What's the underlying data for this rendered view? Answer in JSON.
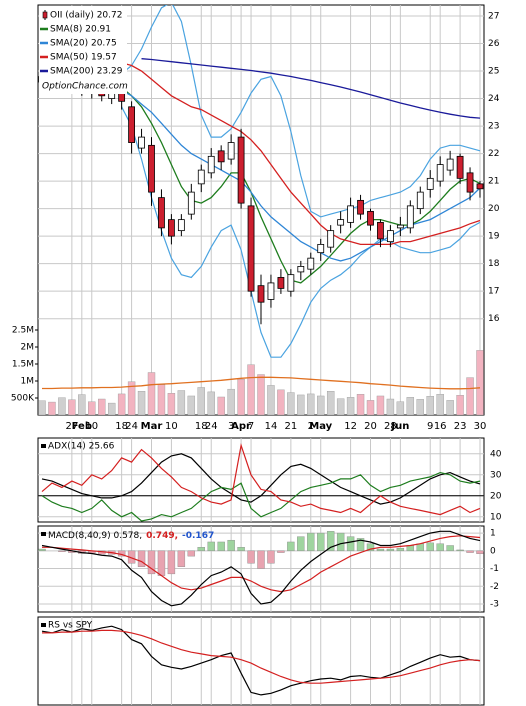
{
  "chart_data": [
    {
      "type": "candlestick",
      "name": "OII (daily) 20.72",
      "watermark": "OptionChance.com",
      "categories": [
        null,
        null,
        null,
        "27",
        "Feb",
        "10",
        null,
        null,
        "18",
        "24",
        null,
        "Mar",
        null,
        "10",
        null,
        null,
        "18",
        "24",
        null,
        "3",
        "Apr",
        "7",
        null,
        "14",
        null,
        "21",
        null,
        "2",
        "May",
        null,
        null,
        "12",
        null,
        "20",
        null,
        "28",
        "Jun",
        null,
        null,
        "9",
        "16",
        null,
        "23",
        null,
        "30"
      ],
      "open": [
        24.6,
        24.8,
        24.5,
        24.7,
        24.3,
        24.5,
        24.3,
        24.0,
        24.2,
        23.7,
        22.2,
        22.3,
        20.4,
        19.6,
        19.2,
        19.8,
        20.9,
        21.3,
        22.1,
        21.8,
        22.6,
        20.1,
        17.2,
        16.7,
        17.5,
        17.0,
        17.7,
        17.8,
        18.4,
        18.6,
        19.4,
        19.5,
        20.3,
        19.9,
        19.5,
        18.8,
        19.3,
        19.3,
        20.0,
        20.7,
        21.0,
        21.4,
        21.9,
        21.3,
        20.9
      ],
      "high": [
        25.1,
        25.0,
        25.0,
        24.9,
        24.7,
        24.7,
        24.5,
        24.5,
        24.4,
        23.9,
        22.9,
        22.6,
        20.7,
        19.8,
        19.8,
        20.9,
        21.6,
        22.2,
        22.3,
        22.7,
        22.9,
        20.4,
        17.6,
        17.6,
        17.8,
        17.8,
        18.1,
        18.4,
        18.9,
        19.4,
        19.9,
        20.4,
        20.5,
        20.0,
        19.6,
        19.4,
        19.7,
        20.3,
        20.8,
        21.4,
        21.9,
        22.1,
        22.0,
        21.5,
        21.0
      ],
      "low": [
        24.3,
        24.3,
        24.2,
        24.2,
        24.1,
        24.0,
        23.9,
        23.8,
        23.6,
        22.0,
        22.0,
        20.1,
        19.0,
        18.7,
        19.0,
        19.6,
        20.6,
        21.1,
        21.4,
        21.6,
        20.0,
        16.8,
        15.8,
        16.4,
        16.9,
        16.8,
        17.4,
        17.6,
        18.1,
        18.4,
        19.1,
        19.3,
        19.6,
        19.2,
        18.6,
        18.6,
        19.0,
        19.1,
        19.8,
        20.4,
        20.8,
        21.2,
        20.9,
        20.3,
        20.4
      ],
      "close": [
        24.8,
        24.6,
        24.8,
        24.4,
        24.5,
        24.2,
        24.1,
        24.3,
        23.9,
        22.4,
        22.6,
        20.6,
        19.3,
        19.0,
        19.6,
        20.6,
        21.4,
        21.9,
        21.7,
        22.4,
        20.2,
        17.0,
        16.6,
        17.3,
        17.1,
        17.6,
        17.9,
        18.2,
        18.7,
        19.2,
        19.6,
        20.1,
        19.8,
        19.4,
        18.9,
        19.2,
        19.4,
        20.1,
        20.6,
        21.1,
        21.6,
        21.8,
        21.1,
        20.6,
        20.72
      ],
      "series": [
        {
          "name": "SMA(8) 20.91",
          "color": "#1e7d1e",
          "values": [
            null,
            null,
            null,
            null,
            null,
            null,
            null,
            24.5,
            24.4,
            24.1,
            23.7,
            23.1,
            22.4,
            21.6,
            20.8,
            20.3,
            20.2,
            20.4,
            20.8,
            21.3,
            21.3,
            20.6,
            19.7,
            18.9,
            18.1,
            17.4,
            17.3,
            17.6,
            17.9,
            18.3,
            18.7,
            19.1,
            19.4,
            19.6,
            19.6,
            19.5,
            19.4,
            19.4,
            19.6,
            19.9,
            20.3,
            20.7,
            21.0,
            21.1,
            20.91
          ]
        },
        {
          "name": "SMA(20) 20.75",
          "color": "#2f86d6",
          "values": [
            null,
            null,
            null,
            null,
            null,
            null,
            null,
            null,
            24.3,
            24.1,
            23.8,
            23.5,
            23.1,
            22.7,
            22.3,
            22.0,
            21.8,
            21.6,
            21.4,
            21.2,
            21.0,
            20.6,
            20.1,
            19.7,
            19.4,
            19.1,
            18.8,
            18.6,
            18.4,
            18.2,
            18.1,
            18.2,
            18.4,
            18.6,
            18.8,
            19.0,
            19.2,
            19.4,
            19.5,
            19.6,
            19.8,
            20.0,
            20.2,
            20.4,
            20.75
          ]
        },
        {
          "name": "SMA(50) 19.57",
          "color": "#d42020",
          "values": [
            25.6,
            25.6,
            25.5,
            25.5,
            25.5,
            25.4,
            25.4,
            25.4,
            25.3,
            25.2,
            25.0,
            24.7,
            24.4,
            24.1,
            23.9,
            23.7,
            23.6,
            23.4,
            23.2,
            23.0,
            22.8,
            22.5,
            22.1,
            21.6,
            21.1,
            20.6,
            20.2,
            19.8,
            19.4,
            19.1,
            18.9,
            18.8,
            18.7,
            18.7,
            18.7,
            18.7,
            18.8,
            18.8,
            18.9,
            19.0,
            19.1,
            19.2,
            19.3,
            19.45,
            19.57
          ]
        },
        {
          "name": "SMA(200) 23.29",
          "color": "#1a1a9a",
          "values": [
            null,
            null,
            null,
            null,
            null,
            null,
            null,
            null,
            null,
            null,
            25.45,
            25.42,
            25.38,
            25.34,
            25.3,
            25.26,
            25.22,
            25.18,
            25.14,
            25.1,
            25.06,
            25.02,
            24.97,
            24.92,
            24.86,
            24.8,
            24.73,
            24.66,
            24.58,
            24.5,
            24.42,
            24.33,
            24.24,
            24.14,
            24.04,
            23.94,
            23.84,
            23.75,
            23.66,
            23.58,
            23.5,
            23.43,
            23.37,
            23.32,
            23.29
          ]
        }
      ],
      "bands": {
        "color": "#4aa3e0",
        "upper": [
          null,
          null,
          null,
          null,
          null,
          null,
          null,
          null,
          24.9,
          25.2,
          25.8,
          26.6,
          27.3,
          27.5,
          26.8,
          25.2,
          23.4,
          22.6,
          22.6,
          22.9,
          23.5,
          24.2,
          24.7,
          24.8,
          24.1,
          22.8,
          21.2,
          19.9,
          19.7,
          19.8,
          19.9,
          20.0,
          20.1,
          20.3,
          20.4,
          20.5,
          20.6,
          20.8,
          21.2,
          21.8,
          22.2,
          22.3,
          22.3,
          22.2,
          22.1
        ],
        "lower": [
          null,
          null,
          null,
          null,
          null,
          null,
          null,
          null,
          23.7,
          23.0,
          21.8,
          20.4,
          19.2,
          18.2,
          17.6,
          17.5,
          17.9,
          18.6,
          19.2,
          19.4,
          18.5,
          17.0,
          15.5,
          14.6,
          14.6,
          15.1,
          15.8,
          16.6,
          17.1,
          17.4,
          17.6,
          17.9,
          18.3,
          18.6,
          18.9,
          18.8,
          18.6,
          18.5,
          18.4,
          18.4,
          18.5,
          18.6,
          18.9,
          19.3,
          19.5
        ]
      },
      "ylim": [
        12.5,
        27.4
      ],
      "yticks": [
        16,
        17,
        18,
        19,
        20,
        21,
        22,
        23,
        24,
        25,
        26,
        27
      ],
      "grid": true,
      "volume": {
        "up_color": "#cfcfcf",
        "down_color": "#f2b3c0",
        "ylim": [
          0,
          2500000
        ],
        "yticks": [
          {
            "value": 500000,
            "label": "500K"
          },
          {
            "value": 1000000,
            "label": "1M"
          },
          {
            "value": 1500000,
            "label": "1.5M"
          },
          {
            "value": 2000000,
            "label": "2M"
          },
          {
            "value": 2500000,
            "label": "2.5M"
          }
        ],
        "values": [
          420000,
          380000,
          510000,
          450000,
          600000,
          390000,
          470000,
          350000,
          620000,
          980000,
          700000,
          1250000,
          890000,
          640000,
          720000,
          560000,
          810000,
          680000,
          530000,
          760000,
          1050000,
          1480000,
          1190000,
          870000,
          740000,
          660000,
          590000,
          620000,
          560000,
          700000,
          480000,
          520000,
          610000,
          430000,
          560000,
          470000,
          390000,
          520000,
          460000,
          550000,
          610000,
          430000,
          580000,
          1100000,
          1900000
        ],
        "ma": {
          "color": "#e07020",
          "values": [
            780000,
            780000,
            790000,
            790000,
            800000,
            800000,
            810000,
            810000,
            820000,
            840000,
            860000,
            890000,
            910000,
            920000,
            940000,
            960000,
            980000,
            1000000,
            1020000,
            1050000,
            1080000,
            1100000,
            1110000,
            1110000,
            1100000,
            1090000,
            1070000,
            1050000,
            1030000,
            1010000,
            990000,
            970000,
            950000,
            920000,
            900000,
            880000,
            850000,
            830000,
            810000,
            790000,
            780000,
            770000,
            770000,
            780000,
            800000
          ]
        }
      }
    },
    {
      "type": "line",
      "title": "ADX(14) 25.66",
      "ylim": [
        7.5,
        47.5
      ],
      "yticks": [
        10,
        20,
        30,
        40
      ],
      "threshold": 20,
      "grid": true,
      "series": [
        {
          "color": "#000000",
          "values": [
            28,
            27,
            25,
            23,
            21,
            20,
            19,
            19,
            20,
            22,
            26,
            31,
            36,
            39,
            40,
            38,
            33,
            28,
            24,
            21,
            18,
            17,
            20,
            25,
            30,
            34,
            35,
            33,
            30,
            27,
            24,
            22,
            20,
            18,
            16,
            17,
            19,
            22,
            25,
            28,
            30,
            31,
            29,
            27,
            25.66
          ]
        },
        {
          "color": "#1e7d1e",
          "values": [
            20,
            17,
            15,
            14,
            12,
            14,
            18,
            13,
            10,
            12,
            8,
            9,
            11,
            10,
            12,
            14,
            18,
            22,
            24,
            23,
            26,
            14,
            10,
            12,
            14,
            18,
            22,
            24,
            25,
            26,
            28,
            28,
            30,
            25,
            22,
            24,
            25,
            27,
            28,
            29,
            31,
            30,
            27,
            26,
            27
          ]
        },
        {
          "color": "#d42020",
          "values": [
            22,
            26,
            24,
            27,
            25,
            30,
            28,
            32,
            38,
            36,
            42,
            38,
            33,
            29,
            24,
            22,
            19,
            17,
            16,
            18,
            44,
            30,
            23,
            22,
            18,
            17,
            15,
            16,
            14,
            13,
            12,
            14,
            12,
            16,
            20,
            17,
            15,
            14,
            13,
            12,
            11,
            13,
            15,
            12,
            14
          ]
        }
      ]
    },
    {
      "type": "macd",
      "title_parts": [
        {
          "text": "MACD(8,40,9) 0.578,",
          "color": "#000000"
        },
        {
          "text": "0.749,",
          "color": "#d42020"
        },
        {
          "text": "-0.167",
          "color": "#2255cc"
        }
      ],
      "ylim": [
        -3.45,
        1.4
      ],
      "yticks": [
        1,
        0,
        -1,
        -2,
        -3
      ],
      "grid": true,
      "macd": {
        "color": "#000000",
        "values": [
          0.3,
          0.2,
          0.1,
          0.0,
          -0.1,
          -0.15,
          -0.25,
          -0.3,
          -0.5,
          -1.1,
          -1.5,
          -2.3,
          -2.8,
          -3.1,
          -3.0,
          -2.5,
          -1.9,
          -1.4,
          -1.2,
          -0.9,
          -1.3,
          -2.4,
          -3.0,
          -2.9,
          -2.4,
          -1.7,
          -1.1,
          -0.6,
          -0.2,
          0.2,
          0.4,
          0.5,
          0.6,
          0.5,
          0.3,
          0.3,
          0.4,
          0.6,
          0.8,
          1.0,
          1.1,
          1.1,
          0.9,
          0.7,
          0.578
        ]
      },
      "signal": {
        "color": "#d42020",
        "values": [
          0.2,
          0.2,
          0.15,
          0.1,
          0.05,
          0.0,
          -0.05,
          -0.1,
          -0.2,
          -0.4,
          -0.6,
          -1.0,
          -1.4,
          -1.8,
          -2.1,
          -2.2,
          -2.1,
          -1.9,
          -1.7,
          -1.5,
          -1.5,
          -1.7,
          -2.0,
          -2.2,
          -2.3,
          -2.2,
          -1.9,
          -1.6,
          -1.2,
          -0.9,
          -0.6,
          -0.3,
          -0.1,
          0.1,
          0.2,
          0.2,
          0.25,
          0.3,
          0.4,
          0.55,
          0.7,
          0.8,
          0.85,
          0.8,
          0.749
        ]
      },
      "histogram": {
        "pos_color": "#9fd49f",
        "neg_color": "#e8a3b0",
        "values": [
          0.1,
          0.0,
          -0.05,
          -0.1,
          -0.15,
          -0.15,
          -0.2,
          -0.2,
          -0.3,
          -0.7,
          -0.9,
          -1.3,
          -1.4,
          -1.3,
          -0.9,
          -0.3,
          0.2,
          0.5,
          0.5,
          0.6,
          0.2,
          -0.7,
          -1.0,
          -0.7,
          -0.1,
          0.5,
          0.8,
          1.0,
          1.0,
          1.1,
          1.0,
          0.8,
          0.7,
          0.4,
          0.1,
          0.1,
          0.15,
          0.3,
          0.4,
          0.45,
          0.4,
          0.3,
          0.05,
          -0.1,
          -0.167
        ]
      }
    },
    {
      "type": "line",
      "title": "RS vs SPY",
      "ylim": [
        0,
        10.5
      ],
      "yticks": [],
      "series": [
        {
          "color": "#000000",
          "values": [
            8.8,
            8.6,
            9.0,
            8.7,
            9.1,
            8.9,
            9.2,
            9.4,
            9.0,
            7.8,
            7.3,
            5.8,
            4.8,
            4.5,
            4.3,
            4.6,
            5.0,
            5.4,
            5.9,
            6.2,
            3.8,
            1.5,
            1.2,
            1.4,
            1.8,
            2.3,
            2.6,
            2.9,
            3.1,
            3.2,
            3.0,
            3.4,
            3.5,
            3.3,
            3.2,
            3.6,
            4.0,
            4.6,
            5.1,
            5.6,
            6.0,
            5.7,
            5.8,
            5.4,
            5.3
          ]
        },
        {
          "color": "#d42020",
          "values": [
            8.6,
            8.6,
            8.7,
            8.7,
            8.8,
            8.8,
            8.9,
            8.9,
            8.8,
            8.6,
            8.3,
            7.9,
            7.4,
            7.0,
            6.6,
            6.3,
            6.1,
            5.9,
            5.8,
            5.7,
            5.4,
            5.0,
            4.4,
            3.9,
            3.4,
            3.0,
            2.7,
            2.6,
            2.6,
            2.7,
            2.8,
            2.9,
            3.0,
            3.1,
            3.2,
            3.3,
            3.5,
            3.8,
            4.1,
            4.4,
            4.8,
            5.1,
            5.3,
            5.4,
            5.3
          ]
        }
      ]
    }
  ]
}
